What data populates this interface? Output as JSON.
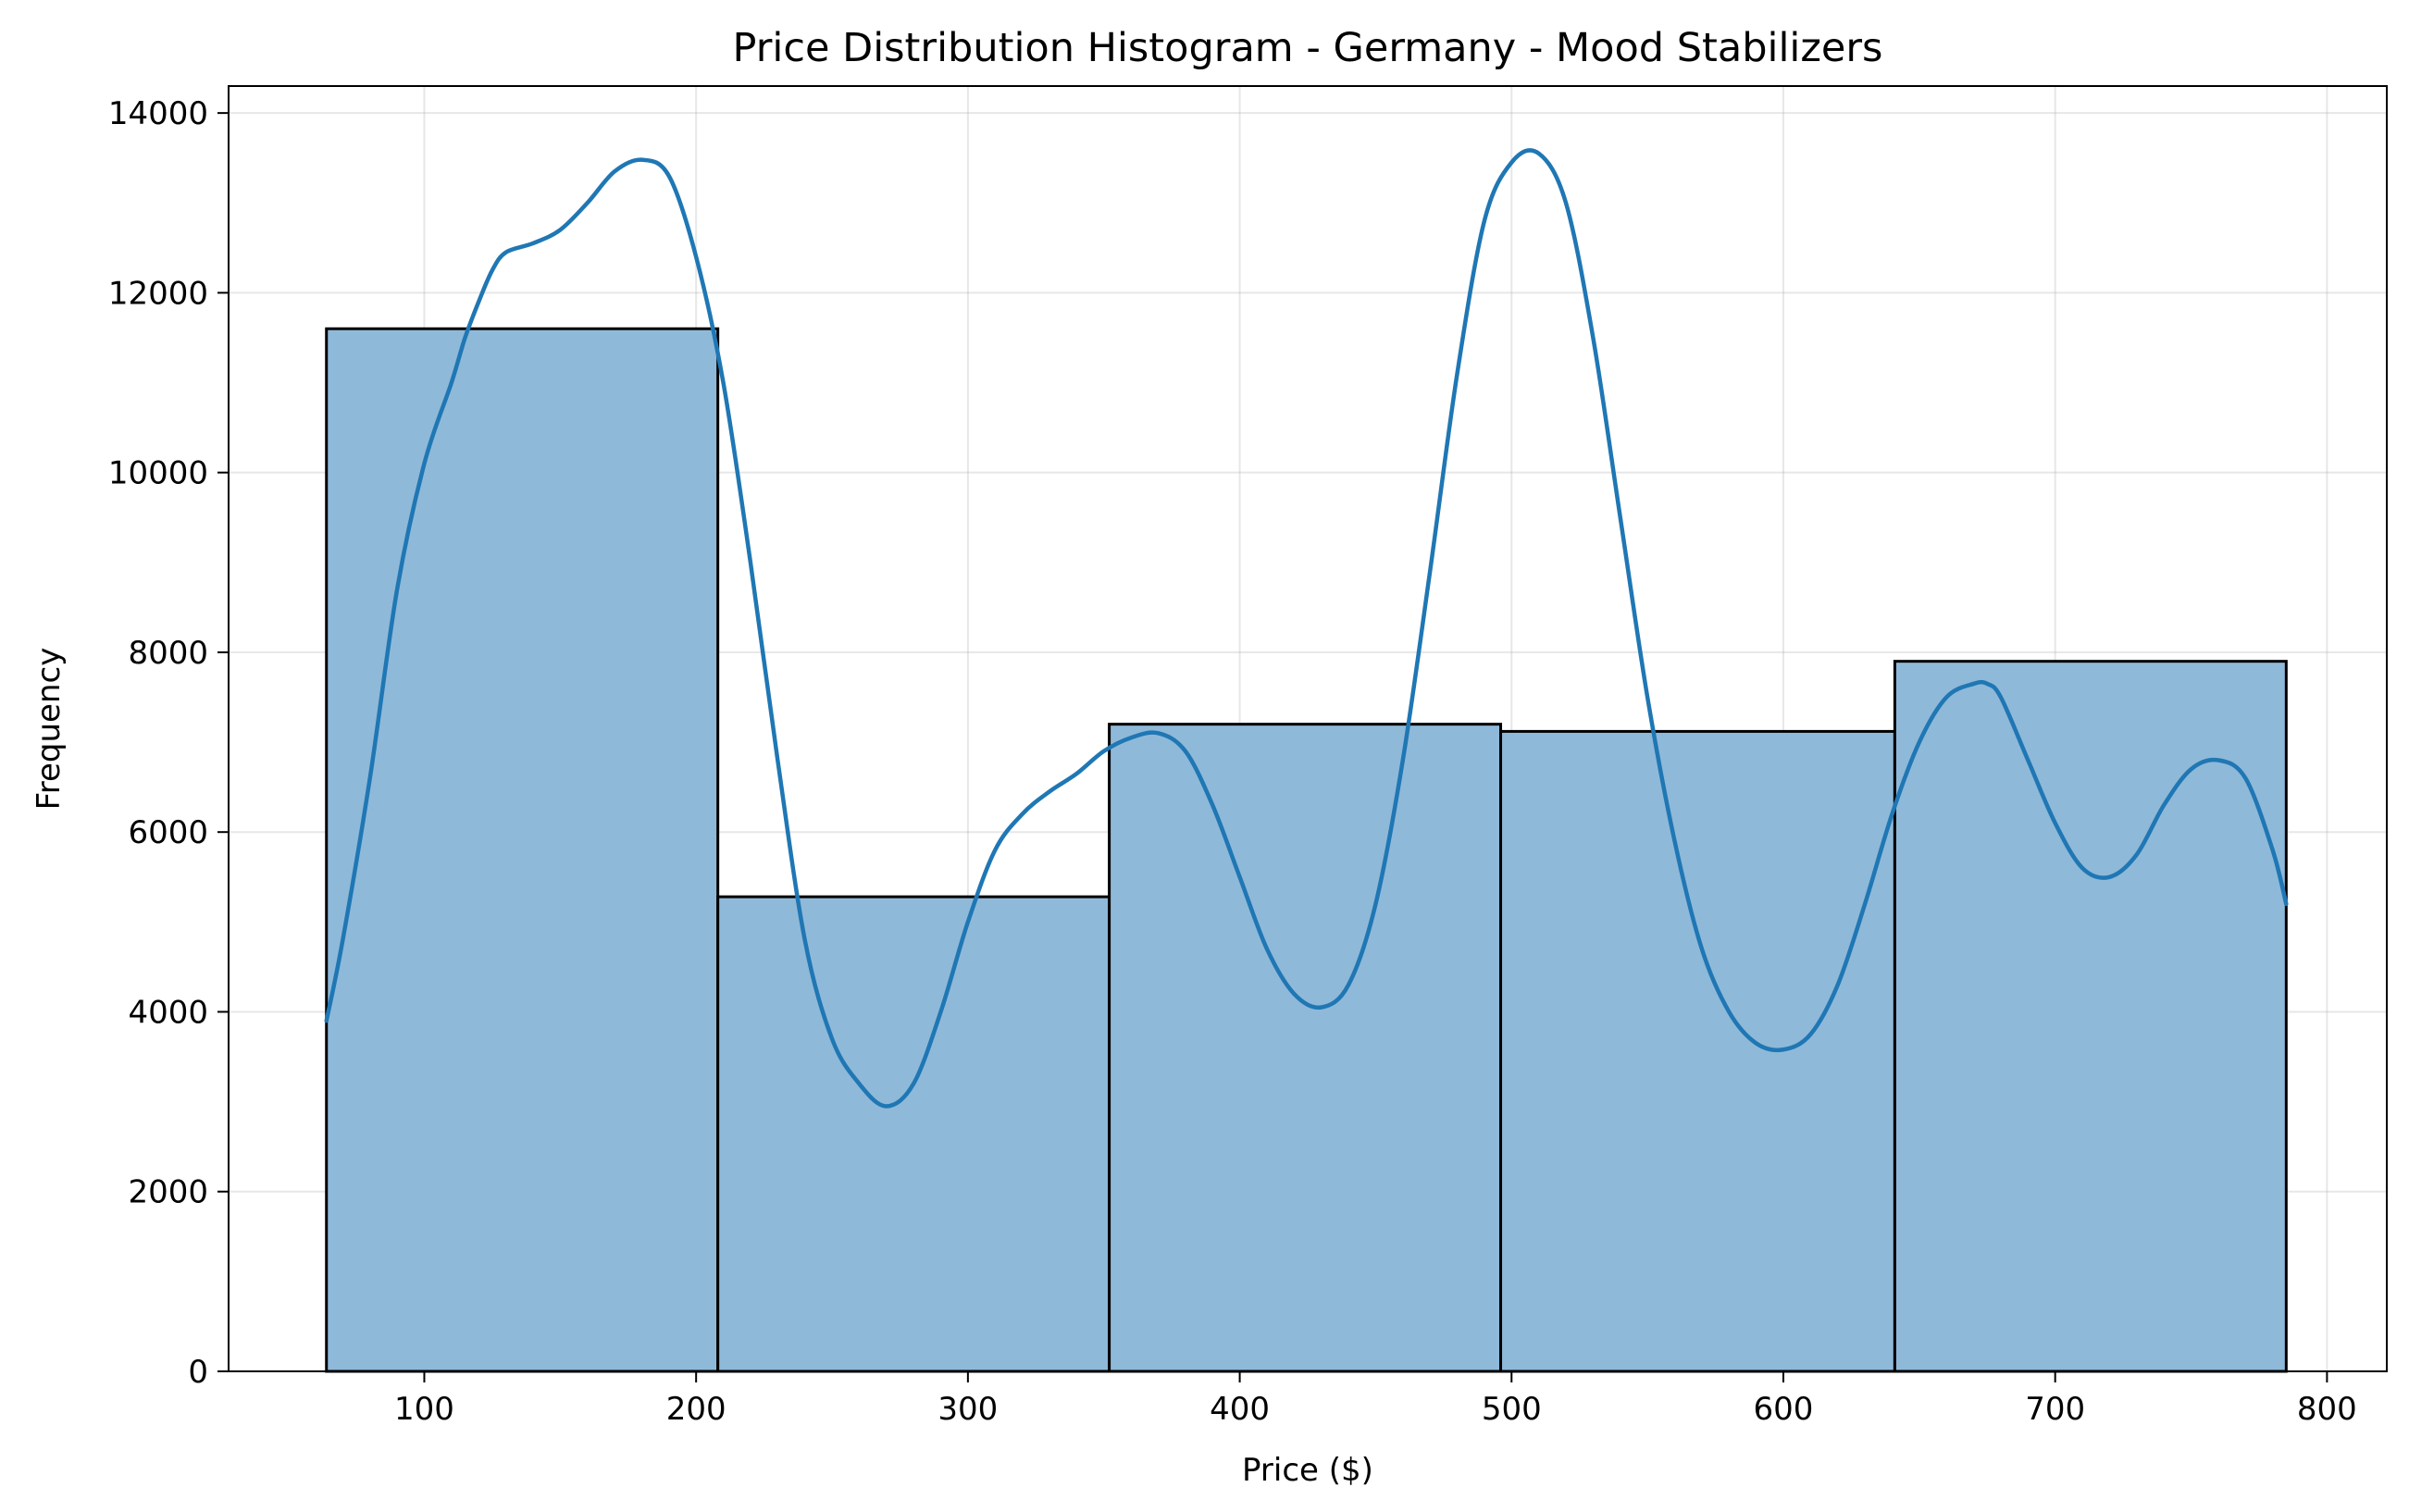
{
  "chart_data": {
    "type": "histogram",
    "title": "Price Distribution Histogram - Germany - Mood Stabilizers",
    "xlabel": "Price ($)",
    "ylabel": "Frequency",
    "xlim": [
      28,
      822
    ],
    "ylim": [
      0,
      14300
    ],
    "x_ticks": [
      100,
      200,
      300,
      400,
      500,
      600,
      700,
      800
    ],
    "y_ticks": [
      0,
      2000,
      4000,
      6000,
      8000,
      10000,
      12000,
      14000
    ],
    "grid": true,
    "colors": {
      "bar_fill": "#8fb9d9",
      "bar_edge": "#000000",
      "kde_line": "#1f77b4"
    },
    "bins": [
      {
        "x0": 64,
        "x1": 208,
        "value": 11600
      },
      {
        "x0": 208,
        "x1": 352,
        "value": 5280
      },
      {
        "x0": 352,
        "x1": 496,
        "value": 7200
      },
      {
        "x0": 496,
        "x1": 641,
        "value": 7120
      },
      {
        "x0": 641,
        "x1": 785,
        "value": 7900
      }
    ],
    "kde": {
      "x": [
        64,
        70,
        80,
        90,
        100,
        110,
        115,
        120,
        125,
        130,
        140,
        150,
        160,
        170,
        180,
        190,
        200,
        210,
        220,
        230,
        240,
        250,
        260,
        270,
        280,
        290,
        300,
        310,
        320,
        330,
        340,
        350,
        360,
        370,
        380,
        390,
        400,
        410,
        420,
        430,
        440,
        450,
        460,
        470,
        480,
        490,
        500,
        510,
        520,
        530,
        540,
        550,
        560,
        570,
        580,
        590,
        600,
        610,
        620,
        630,
        640,
        650,
        660,
        670,
        675,
        680,
        690,
        700,
        710,
        720,
        730,
        740,
        750,
        760,
        770,
        780,
        785
      ],
      "y": [
        3900,
        4800,
        6600,
        8700,
        10100,
        11000,
        11500,
        11900,
        12250,
        12450,
        12550,
        12700,
        13000,
        13350,
        13480,
        13300,
        12400,
        11000,
        9000,
        6800,
        4800,
        3700,
        3200,
        2950,
        3200,
        4000,
        5000,
        5800,
        6200,
        6450,
        6650,
        6900,
        7050,
        7100,
        6900,
        6300,
        5500,
        4700,
        4200,
        4050,
        4300,
        5200,
        6800,
        8900,
        11100,
        12800,
        13450,
        13550,
        13000,
        11500,
        9500,
        7500,
        5900,
        4700,
        4000,
        3650,
        3580,
        3750,
        4300,
        5200,
        6200,
        7000,
        7500,
        7650,
        7650,
        7500,
        6800,
        6100,
        5600,
        5500,
        5750,
        6300,
        6700,
        6800,
        6600,
        5800,
        5200
      ]
    }
  }
}
